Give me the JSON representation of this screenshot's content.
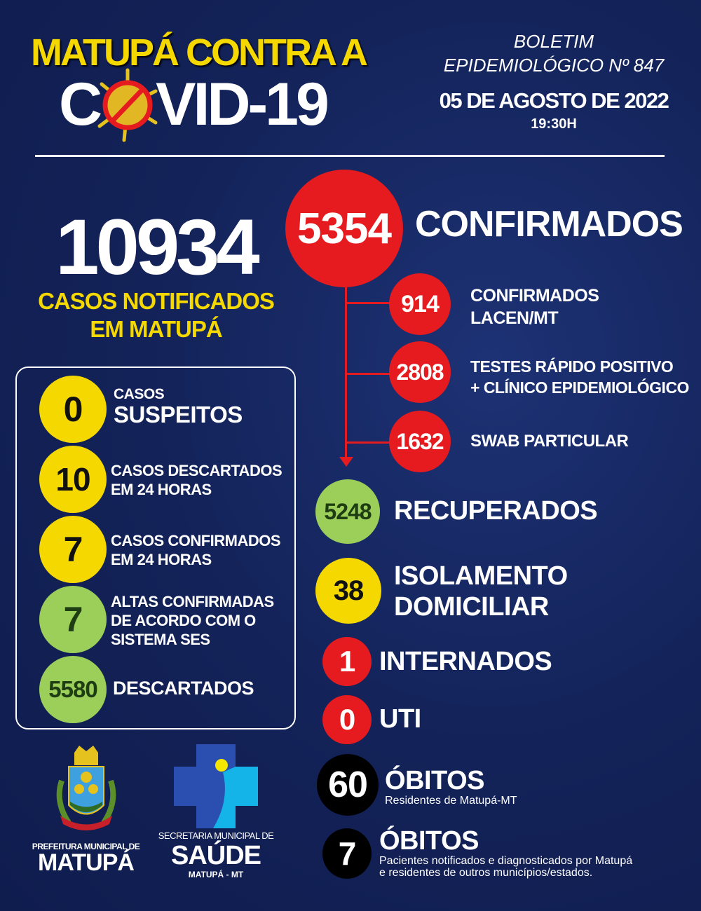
{
  "header": {
    "title_line1": "MATUPÁ CONTRA A",
    "title_line2_prefix": "C",
    "title_line2_suffix": "VID-19",
    "bulletin_line1": "BOLETIM",
    "bulletin_line2": "EPIDEMIOLÓGICO Nº 847",
    "date": "05 DE AGOSTO DE 2022",
    "time": "19:30H"
  },
  "notified": {
    "value": "10934",
    "label_line1": "CASOS NOTIFICADOS",
    "label_line2": "EM MATUPÁ"
  },
  "left_box": [
    {
      "value": "0",
      "label_small": "CASOS",
      "label_big": "SUSPEITOS",
      "color": "#f5d800"
    },
    {
      "value": "10",
      "label": [
        "CASOS DESCARTADOS",
        "EM 24 HORAS"
      ],
      "color": "#f5d800"
    },
    {
      "value": "7",
      "label": [
        "CASOS CONFIRMADOS",
        "EM 24 HORAS"
      ],
      "color": "#f5d800"
    },
    {
      "value": "7",
      "label": [
        "ALTAS CONFIRMADAS",
        "DE ACORDO COM O",
        "SISTEMA SES"
      ],
      "color": "#9ccf5a"
    },
    {
      "value": "5580",
      "label": [
        "DESCARTADOS"
      ],
      "color": "#9ccf5a"
    }
  ],
  "confirmed": {
    "value": "5354",
    "label": "CONFIRMADOS",
    "breakdown": [
      {
        "value": "914",
        "label": [
          "CONFIRMADOS",
          "LACEN/MT"
        ]
      },
      {
        "value": "2808",
        "label": [
          "TESTES RÁPIDO POSITIVO",
          "+ CLÍNICO EPIDEMIOLÓGICO"
        ]
      },
      {
        "value": "1632",
        "label": [
          "SWAB PARTICULAR"
        ]
      }
    ]
  },
  "recovered": {
    "value": "5248",
    "label": "RECUPERADOS"
  },
  "isolation": {
    "value": "38",
    "label_line1": "ISOLAMENTO",
    "label_line2": "DOMICILIAR"
  },
  "hospitalized": {
    "value": "1",
    "label": "INTERNADOS"
  },
  "icu": {
    "value": "0",
    "label": "UTI"
  },
  "deaths_residents": {
    "value": "60",
    "label": "ÓBITOS",
    "sub": "Residentes de Matupá-MT"
  },
  "deaths_others": {
    "value": "7",
    "label": "ÓBITOS",
    "sub_line1": "Pacientes notificados e diagnosticados por Matupá",
    "sub_line2": "e residentes de outros municípios/estados."
  },
  "logos": {
    "prefeitura_small": "PREFEITURA MUNICIPAL DE",
    "prefeitura_big": "MATUPÁ",
    "crest_banner": "MATUPÁ",
    "saude_small": "SECRETARIA MUNICIPAL DE",
    "saude_big": "SAÚDE",
    "saude_sub": "MATUPÁ - MT"
  },
  "colors": {
    "background": "#132258",
    "yellow": "#f5d800",
    "red": "#e51b1f",
    "green": "#9ccf5a",
    "black": "#000000"
  }
}
